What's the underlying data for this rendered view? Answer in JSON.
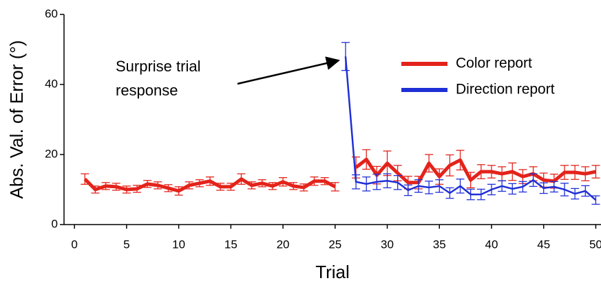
{
  "chart_data": {
    "type": "line",
    "x_label": "Trial",
    "y_label": "Abs. Val. of Error (°)",
    "annotation": [
      "Surprise trial",
      "response"
    ],
    "x": [
      1,
      2,
      3,
      4,
      5,
      6,
      7,
      8,
      9,
      10,
      11,
      12,
      13,
      14,
      15,
      16,
      17,
      18,
      19,
      20,
      21,
      22,
      23,
      24,
      25,
      26,
      27,
      28,
      29,
      30,
      31,
      32,
      33,
      34,
      35,
      36,
      37,
      38,
      39,
      40,
      41,
      42,
      43,
      44,
      45,
      46,
      47,
      48,
      49,
      50
    ],
    "xlim": [
      -1,
      50.5
    ],
    "xticks": [
      0,
      5,
      10,
      15,
      20,
      25,
      30,
      35,
      40,
      45,
      50
    ],
    "ylim": [
      0,
      60
    ],
    "yticks": [
      0,
      20,
      40,
      60
    ],
    "series": [
      {
        "name": "Color report",
        "color": "#e3231b",
        "width": 5,
        "values": [
          13,
          10,
          11,
          10.8,
          10,
          10.2,
          11.6,
          11.2,
          10.4,
          9.6,
          11.2,
          11.8,
          12.4,
          10.8,
          10.8,
          13,
          11.2,
          11.8,
          11,
          12.2,
          11,
          10.6,
          12.4,
          12.4,
          10.8,
          null,
          16.3,
          18.6,
          14.1,
          17.5,
          14.7,
          12,
          12,
          17.5,
          13.7,
          16.9,
          18.4,
          12.7,
          15.1,
          15.1,
          14.5,
          15.1,
          13.7,
          14.5,
          12.7,
          12.4,
          14.9,
          14.9,
          14.5,
          15.1
        ],
        "errors": [
          1.5,
          1,
          1,
          1,
          1,
          1,
          1,
          1,
          1,
          1.2,
          1,
          1,
          1.2,
          1,
          1,
          1.5,
          1,
          1,
          1,
          1.2,
          1,
          1,
          1.2,
          1,
          1.2,
          null,
          3,
          2.8,
          2.5,
          3.5,
          2.2,
          1.8,
          1.8,
          2.5,
          2.2,
          3,
          2.8,
          2.2,
          2,
          1.8,
          2,
          2.5,
          2,
          2,
          2,
          2,
          2,
          2,
          2,
          1.8
        ]
      },
      {
        "name": "Direction report",
        "color": "#1f2fd6",
        "width": 2.5,
        "values": [
          null,
          null,
          null,
          null,
          null,
          null,
          null,
          null,
          null,
          null,
          null,
          null,
          null,
          null,
          null,
          null,
          null,
          null,
          null,
          null,
          null,
          null,
          null,
          null,
          null,
          48,
          12.2,
          11.6,
          12.2,
          12.5,
          12,
          9.8,
          11,
          10.6,
          11,
          9,
          11,
          8.6,
          8.6,
          10,
          11,
          10.2,
          10.8,
          12.7,
          10.4,
          10.8,
          10,
          8.8,
          9.6,
          7
        ],
        "errors": [
          null,
          null,
          null,
          null,
          null,
          null,
          null,
          null,
          null,
          null,
          null,
          null,
          null,
          null,
          null,
          null,
          null,
          null,
          null,
          null,
          null,
          null,
          null,
          null,
          null,
          4,
          2,
          2,
          2.2,
          2,
          2,
          1.5,
          1.8,
          1.8,
          1.8,
          1.5,
          2,
          1.5,
          1.5,
          1.5,
          1.5,
          1.5,
          1.5,
          1.8,
          1.5,
          1.5,
          1.8,
          1.5,
          1.5,
          1.2
        ]
      }
    ]
  }
}
